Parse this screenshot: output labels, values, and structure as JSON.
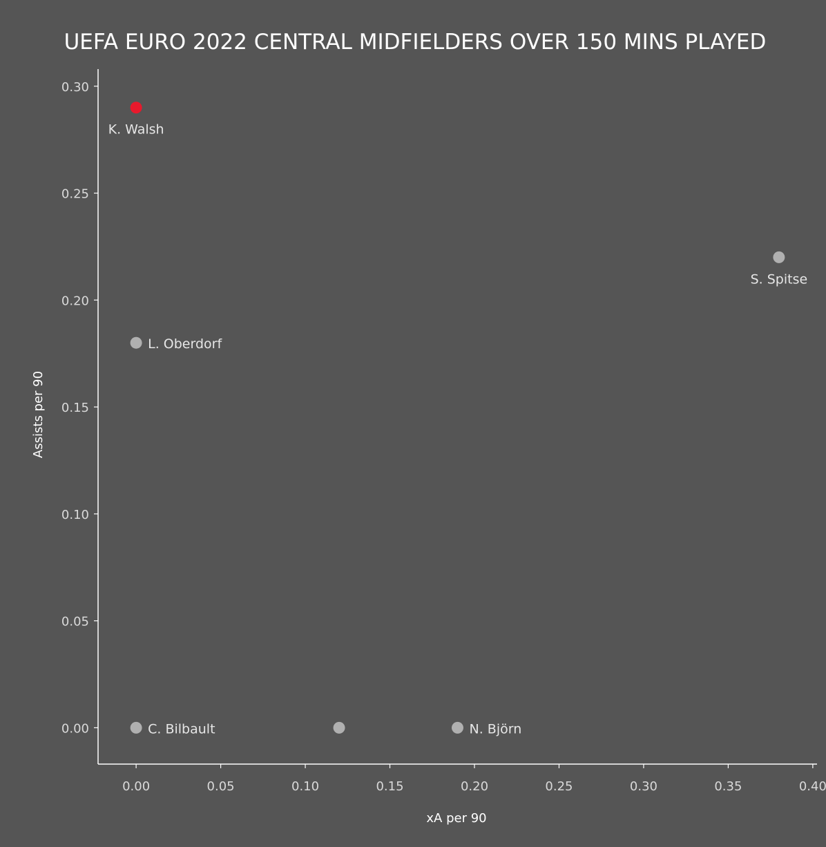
{
  "chart_data": {
    "type": "scatter",
    "title": "UEFA EURO 2022 CENTRAL MIDFIELDERS OVER 150 MINS PLAYED",
    "xlabel": "xA per 90",
    "ylabel": "Assists per 90",
    "xlim": [
      -0.0225,
      0.4025
    ],
    "ylim": [
      -0.017,
      0.308
    ],
    "xticks": [
      "0.00",
      "0.05",
      "0.10",
      "0.15",
      "0.20",
      "0.25",
      "0.30",
      "0.35",
      "0.40"
    ],
    "xtick_values": [
      0,
      0.05,
      0.1,
      0.15,
      0.2,
      0.25,
      0.3,
      0.35,
      0.4
    ],
    "yticks": [
      "0.00",
      "0.05",
      "0.10",
      "0.15",
      "0.20",
      "0.25",
      "0.30"
    ],
    "ytick_values": [
      0,
      0.05,
      0.1,
      0.15,
      0.2,
      0.25,
      0.3
    ],
    "grid": false,
    "points": [
      {
        "label": "K. Walsh",
        "x": 0.0,
        "y": 0.29,
        "highlight": true,
        "label_position": "below"
      },
      {
        "label": "S. Spitse",
        "x": 0.38,
        "y": 0.22,
        "highlight": false,
        "label_position": "below"
      },
      {
        "label": "L. Oberdorf",
        "x": 0.0,
        "y": 0.18,
        "highlight": false,
        "label_position": "right"
      },
      {
        "label": "C. Bilbault",
        "x": 0.0,
        "y": 0.0,
        "highlight": false,
        "label_position": "right"
      },
      {
        "label": "",
        "x": 0.12,
        "y": 0.0,
        "highlight": false,
        "label_position": "none"
      },
      {
        "label": "N. Björn",
        "x": 0.19,
        "y": 0.0,
        "highlight": false,
        "label_position": "right"
      }
    ],
    "colors": {
      "background": "#555555",
      "highlight": "#e8192c",
      "default_point": "#b0b0b0",
      "text": "#ffffff"
    }
  }
}
